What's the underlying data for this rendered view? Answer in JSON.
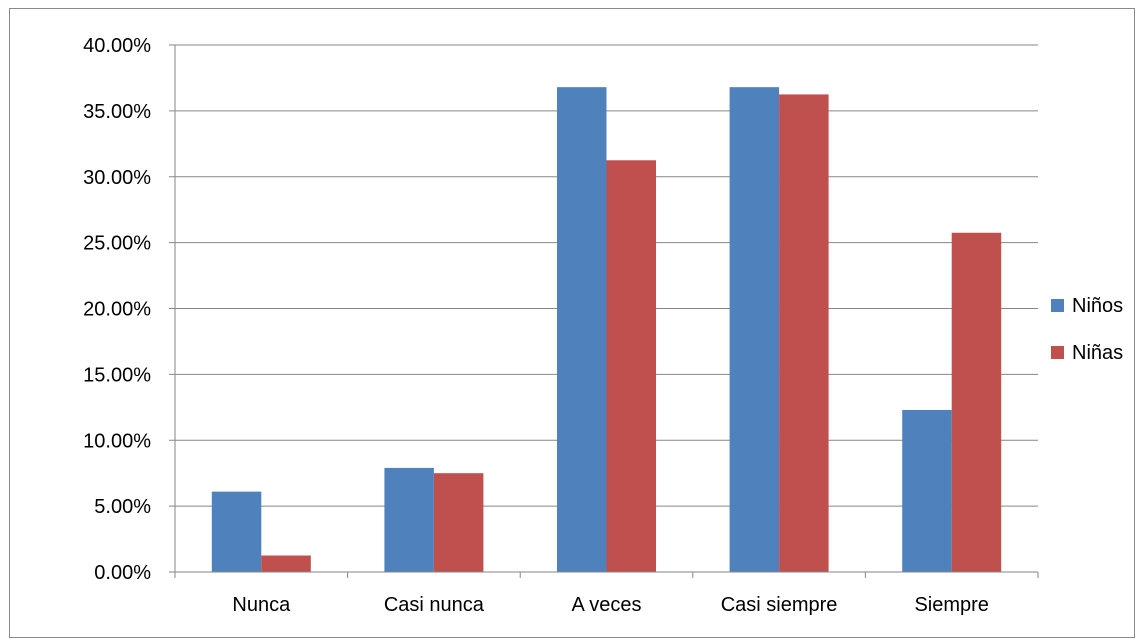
{
  "chart_data": {
    "type": "bar",
    "title": "",
    "xlabel": "",
    "ylabel": "",
    "categories": [
      "Nunca",
      "Casi nunca",
      "A veces",
      "Casi siempre",
      "Siempre"
    ],
    "series": [
      {
        "name": "Niños",
        "color": "#4F81BD",
        "values": [
          6.1,
          7.9,
          36.8,
          36.8,
          12.3
        ]
      },
      {
        "name": "Niñas",
        "color": "#C0504D",
        "values": [
          1.25,
          7.5,
          31.25,
          36.25,
          25.75
        ]
      }
    ],
    "ylim": [
      0,
      40
    ],
    "ytick_values": [
      0,
      5,
      10,
      15,
      20,
      25,
      30,
      35,
      40
    ],
    "ytick_labels": [
      "0.00%",
      "5.00%",
      "10.00%",
      "15.00%",
      "20.00%",
      "25.00%",
      "30.00%",
      "35.00%",
      "40.00%"
    ],
    "grid": true,
    "legend_position": "right"
  }
}
